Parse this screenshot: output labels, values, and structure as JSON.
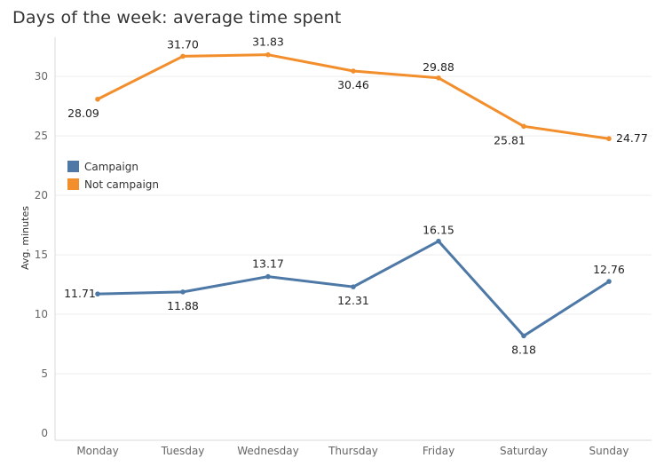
{
  "chart_data": {
    "type": "line",
    "title": "Days of the week: average time spent",
    "ylabel": "Avg. minutes",
    "xlabel": "",
    "categories": [
      "Monday",
      "Tuesday",
      "Wednesday",
      "Thursday",
      "Friday",
      "Saturday",
      "Sunday"
    ],
    "ylim": [
      0,
      33
    ],
    "yticks": [
      "0",
      "5",
      "10",
      "15",
      "20",
      "25",
      "30"
    ],
    "grid": true,
    "legend": "left-middle",
    "series": [
      {
        "name": "Campaign",
        "color": "#4e79a7",
        "values": [
          11.71,
          11.88,
          13.17,
          12.31,
          16.15,
          8.18,
          12.76
        ],
        "labels": [
          "11.71",
          "11.88",
          "13.17",
          "12.31",
          "16.15",
          "8.18",
          "12.76"
        ]
      },
      {
        "name": "Not campaign",
        "color": "#f28e2b",
        "values": [
          28.09,
          31.7,
          31.83,
          30.46,
          29.88,
          25.81,
          24.77
        ],
        "labels": [
          "28.09",
          "31.70",
          "31.83",
          "30.46",
          "29.88",
          "25.81",
          "24.77"
        ]
      }
    ]
  }
}
